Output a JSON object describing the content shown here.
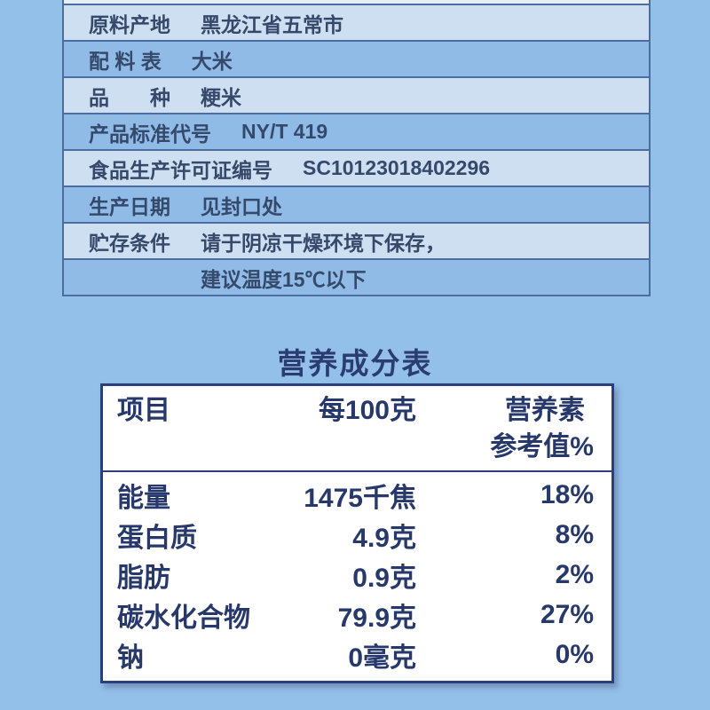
{
  "colors": {
    "page_bg": "#93c0e9",
    "spec_row_light": "#cfdff2",
    "spec_row_dark": "#90bbe6",
    "spec_border": "#4c6da2",
    "spec_text": "#35496b",
    "nutrition_bg": "#ffffff",
    "nutrition_border": "#2b3f7e",
    "nutrition_text": "#27386b"
  },
  "spec_table": {
    "rows": [
      {
        "label": "原料产地",
        "value": "黑龙江省五常市"
      },
      {
        "label": "配 料 表",
        "value": "大米"
      },
      {
        "label": "品　　种",
        "value": "粳米"
      },
      {
        "label": "产品标准代号",
        "value": "NY/T 419"
      },
      {
        "label": "食品生产许可证编号",
        "value": "SC10123018402296"
      },
      {
        "label": "生产日期",
        "value": "见封口处"
      },
      {
        "label": "贮存条件",
        "value": "请于阴凉干燥环境下保存，"
      },
      {
        "label": "",
        "value": "建议温度15℃以下"
      }
    ]
  },
  "nutrition": {
    "title": "营养成分表",
    "header": {
      "col1": "项目",
      "col2": "每100克",
      "col3_line1": "营养素",
      "col3_line2": "参考值%"
    },
    "rows": [
      {
        "item": "能量",
        "per100g": "1475千焦",
        "nrv": "18%"
      },
      {
        "item": "蛋白质",
        "per100g": "4.9克",
        "nrv": "8%"
      },
      {
        "item": "脂肪",
        "per100g": "0.9克",
        "nrv": "2%"
      },
      {
        "item": "碳水化合物",
        "per100g": "79.9克",
        "nrv": "27%"
      },
      {
        "item": "钠",
        "per100g": "0毫克",
        "nrv": "0%"
      }
    ]
  }
}
